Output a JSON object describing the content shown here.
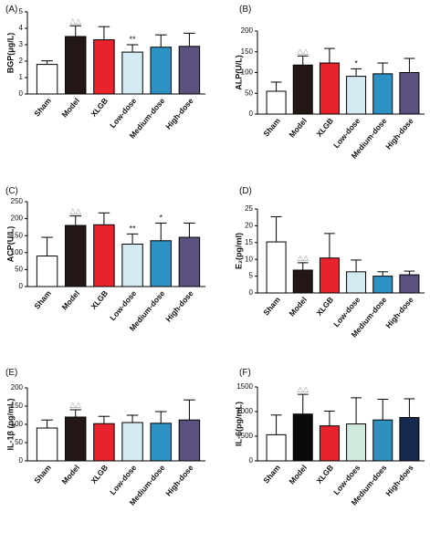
{
  "palette": {
    "default": [
      "#ffffff",
      "#231815",
      "#e8232c",
      "#d4eaf2",
      "#2e91c4",
      "#5c507e"
    ],
    "panelF": [
      "#ffffff",
      "#0a0a0a",
      "#e8232c",
      "#cfe9dc",
      "#2f8fbf",
      "#16294f"
    ]
  },
  "chart_data": [
    {
      "panel": "(A)",
      "type": "bar",
      "categories": [
        "Sham",
        "Model",
        "XLGB",
        "Low-dose",
        "Medium-dose",
        "High-dose"
      ],
      "values": [
        1.8,
        3.5,
        3.3,
        2.55,
        2.85,
        2.9
      ],
      "errors": [
        0.22,
        0.65,
        0.8,
        0.45,
        0.75,
        0.8
      ],
      "annotations": [
        "",
        "△△",
        "",
        "**",
        "",
        ""
      ],
      "ylabel": "BGP(μg/L)",
      "ylim": [
        0,
        5
      ],
      "yticks": [
        "0",
        "1",
        "2",
        "3",
        "4",
        "5"
      ]
    },
    {
      "panel": "(B)",
      "type": "bar",
      "categories": [
        "Sham",
        "Model",
        "XLGB",
        "Low-dose",
        "Medium-dose",
        "High-dose"
      ],
      "values": [
        55,
        118,
        123,
        91,
        97,
        100
      ],
      "errors": [
        22,
        22,
        35,
        18,
        26,
        34
      ],
      "annotations": [
        "",
        "△△",
        "",
        "*",
        "",
        ""
      ],
      "ylabel": "ALP(U/L)",
      "ylim": [
        0,
        200
      ],
      "yticks": [
        "0",
        "50",
        "100",
        "150",
        "200"
      ]
    },
    {
      "panel": "(C)",
      "type": "bar",
      "categories": [
        "Sham",
        "Model",
        "XLGB",
        "Low-dose",
        "Medium-dose",
        "High-dose"
      ],
      "values": [
        90,
        180,
        182,
        125,
        135,
        145
      ],
      "errors": [
        55,
        28,
        35,
        30,
        52,
        42
      ],
      "annotations": [
        "",
        "△△",
        "",
        "**",
        "*",
        ""
      ],
      "ylabel": "ACP(U/L)",
      "ylim": [
        0,
        250
      ],
      "yticks": [
        "0",
        "50",
        "100",
        "150",
        "200",
        "250"
      ]
    },
    {
      "panel": "(D)",
      "type": "bar",
      "categories": [
        "Sham",
        "Model",
        "XLGB",
        "Low-dose",
        "Medium-dose",
        "High-dose"
      ],
      "values": [
        15.2,
        6.8,
        10.4,
        6.3,
        5.0,
        5.4
      ],
      "errors": [
        7.5,
        2.2,
        7.3,
        3.5,
        1.3,
        1.1
      ],
      "annotations": [
        "",
        "△△",
        "",
        "",
        "",
        ""
      ],
      "ylabel": "E₂(pg/ml)",
      "ylim": [
        0,
        25
      ],
      "yticks": [
        "0",
        "5",
        "10",
        "15",
        "20",
        "25"
      ]
    },
    {
      "panel": "(E)",
      "type": "bar",
      "categories": [
        "Sham",
        "Model",
        "XLGB",
        "Low-dose",
        "Medium-dose",
        "High-dose"
      ],
      "values": [
        90,
        120,
        102,
        105,
        103,
        112
      ],
      "errors": [
        22,
        20,
        20,
        20,
        32,
        55
      ],
      "annotations": [
        "",
        "△△",
        "",
        "",
        "",
        ""
      ],
      "ylabel": "IL-1β (pg/mL)",
      "ylim": [
        0,
        200
      ],
      "yticks": [
        "0",
        "50",
        "100",
        "150",
        "200"
      ]
    },
    {
      "panel": "(F)",
      "type": "bar",
      "categories": [
        "Sham",
        "Model",
        "XLGB",
        "Low-does",
        "Medium-does",
        "High-does"
      ],
      "values": [
        530,
        950,
        710,
        750,
        830,
        880
      ],
      "errors": [
        400,
        400,
        300,
        530,
        420,
        380
      ],
      "annotations": [
        "",
        "△△",
        "",
        "",
        "",
        ""
      ],
      "ylabel": "IL-6(pg/mL)",
      "ylim": [
        0,
        1500
      ],
      "yticks": [
        "0",
        "500",
        "1000",
        "1500"
      ]
    }
  ]
}
